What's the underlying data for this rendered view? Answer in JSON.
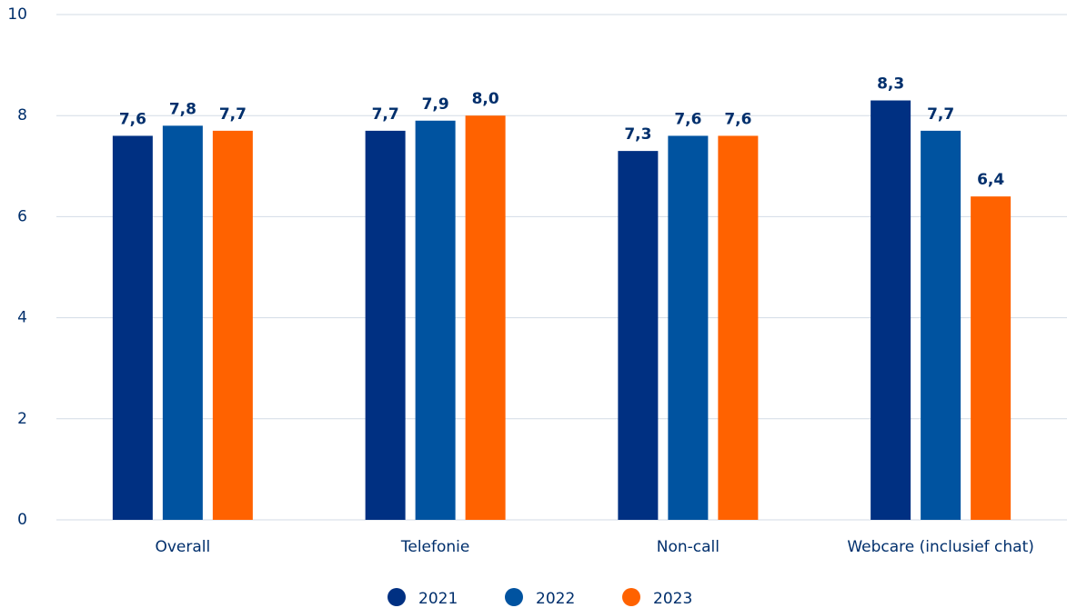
{
  "chart_data": {
    "type": "bar",
    "categories": [
      "Overall",
      "Telefonie",
      "Non-call",
      "Webcare (inclusief chat)"
    ],
    "series": [
      {
        "name": "2021",
        "color": "#003082",
        "values": [
          7.6,
          7.7,
          7.3,
          8.3
        ],
        "value_labels": [
          "7,6",
          "7,7",
          "7,3",
          "8,3"
        ]
      },
      {
        "name": "2022",
        "color": "#0053a0",
        "values": [
          7.8,
          7.9,
          7.6,
          7.7
        ],
        "value_labels": [
          "7,8",
          "7,9",
          "7,6",
          "7,7"
        ]
      },
      {
        "name": "2023",
        "color": "#ff6200",
        "values": [
          7.7,
          8.0,
          7.6,
          6.4
        ],
        "value_labels": [
          "7,7",
          "8,0",
          "7,6",
          "6,4"
        ]
      }
    ],
    "ylim": [
      0,
      10
    ],
    "yticks": [
      0,
      2,
      4,
      6,
      8,
      10
    ],
    "grid": true,
    "legend": "bottom"
  }
}
